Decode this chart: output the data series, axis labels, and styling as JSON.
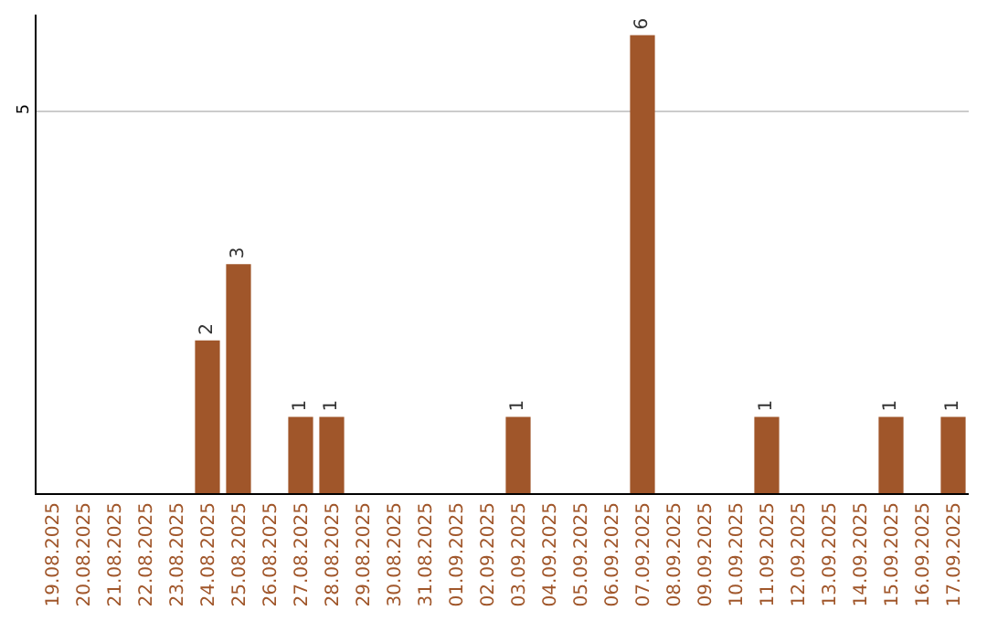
{
  "chart_data": {
    "type": "bar",
    "categories": [
      "19.08.2025",
      "20.08.2025",
      "21.08.2025",
      "22.08.2025",
      "23.08.2025",
      "24.08.2025",
      "25.08.2025",
      "26.08.2025",
      "27.08.2025",
      "28.08.2025",
      "29.08.2025",
      "30.08.2025",
      "31.08.2025",
      "01.09.2025",
      "02.09.2025",
      "03.09.2025",
      "04.09.2025",
      "05.09.2025",
      "06.09.2025",
      "07.09.2025",
      "08.09.2025",
      "09.09.2025",
      "10.09.2025",
      "11.09.2025",
      "12.09.2025",
      "13.09.2025",
      "14.09.2025",
      "15.09.2025",
      "16.09.2025",
      "17.09.2025"
    ],
    "values": [
      0,
      0,
      0,
      0,
      0,
      2,
      3,
      0,
      1,
      1,
      0,
      0,
      0,
      0,
      0,
      1,
      0,
      0,
      0,
      6,
      0,
      0,
      0,
      1,
      0,
      0,
      0,
      1,
      0,
      1
    ],
    "value_labels": [
      null,
      null,
      null,
      null,
      null,
      "2",
      "3",
      null,
      "1",
      "1",
      null,
      null,
      null,
      null,
      null,
      "1",
      null,
      null,
      null,
      "6",
      null,
      null,
      null,
      "1",
      null,
      null,
      null,
      "1",
      null,
      "1"
    ],
    "color": "#a0562a",
    "ylim": [
      0,
      6.27
    ],
    "yticks": [
      5
    ],
    "grid": "y"
  }
}
